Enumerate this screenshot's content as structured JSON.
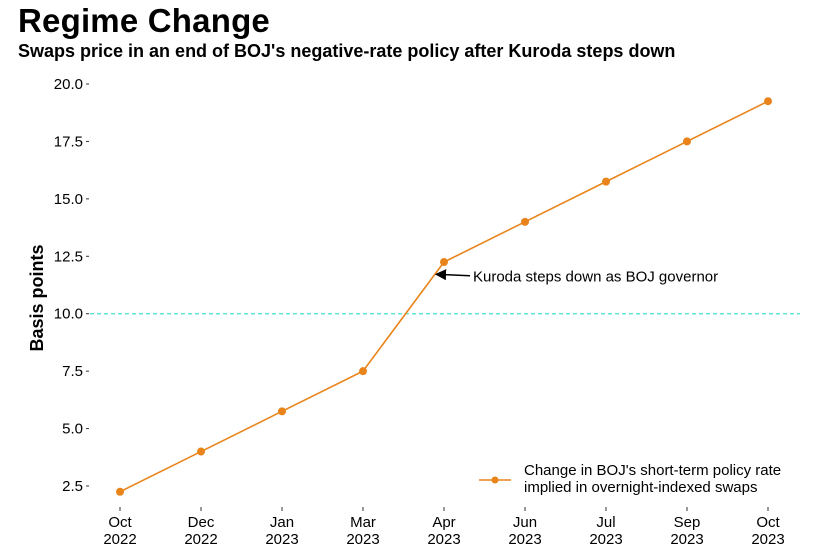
{
  "chart_data": {
    "type": "line",
    "title": "Regime Change",
    "subtitle": "Swaps price in an end of BOJ's negative-rate policy after Kuroda steps down",
    "xlabel": "",
    "ylabel": "Basis points",
    "categories": [
      [
        "Oct",
        "2022"
      ],
      [
        "Dec",
        "2022"
      ],
      [
        "Jan",
        "2023"
      ],
      [
        "Mar",
        "2023"
      ],
      [
        "Apr",
        "2023"
      ],
      [
        "Jun",
        "2023"
      ],
      [
        "Jul",
        "2023"
      ],
      [
        "Sep",
        "2023"
      ],
      [
        "Oct",
        "2023"
      ]
    ],
    "series": [
      {
        "name": "Change in BOJ's short-term policy rate implied in overnight-indexed swaps",
        "legend_lines": [
          "Change in BOJ's short-term policy rate",
          "implied in overnight-indexed swaps"
        ],
        "color": "#e8841a",
        "values": [
          2.25,
          4.0,
          5.75,
          7.5,
          12.25,
          14.0,
          15.75,
          17.5,
          19.25
        ]
      }
    ],
    "ylim": [
      2.0,
      20.3
    ],
    "yticks": [
      "2.5",
      "5.0",
      "7.5",
      "10.0",
      "12.5",
      "15.0",
      "17.5",
      "20.0"
    ],
    "reference_line": {
      "y": 10.0,
      "color": "#40e0d0",
      "style": "dashed"
    },
    "annotation": {
      "text": "Kuroda steps down as BOJ governor",
      "target_index": 4,
      "target_y": 11.5
    },
    "grid": false,
    "legend": "bottom-right"
  }
}
